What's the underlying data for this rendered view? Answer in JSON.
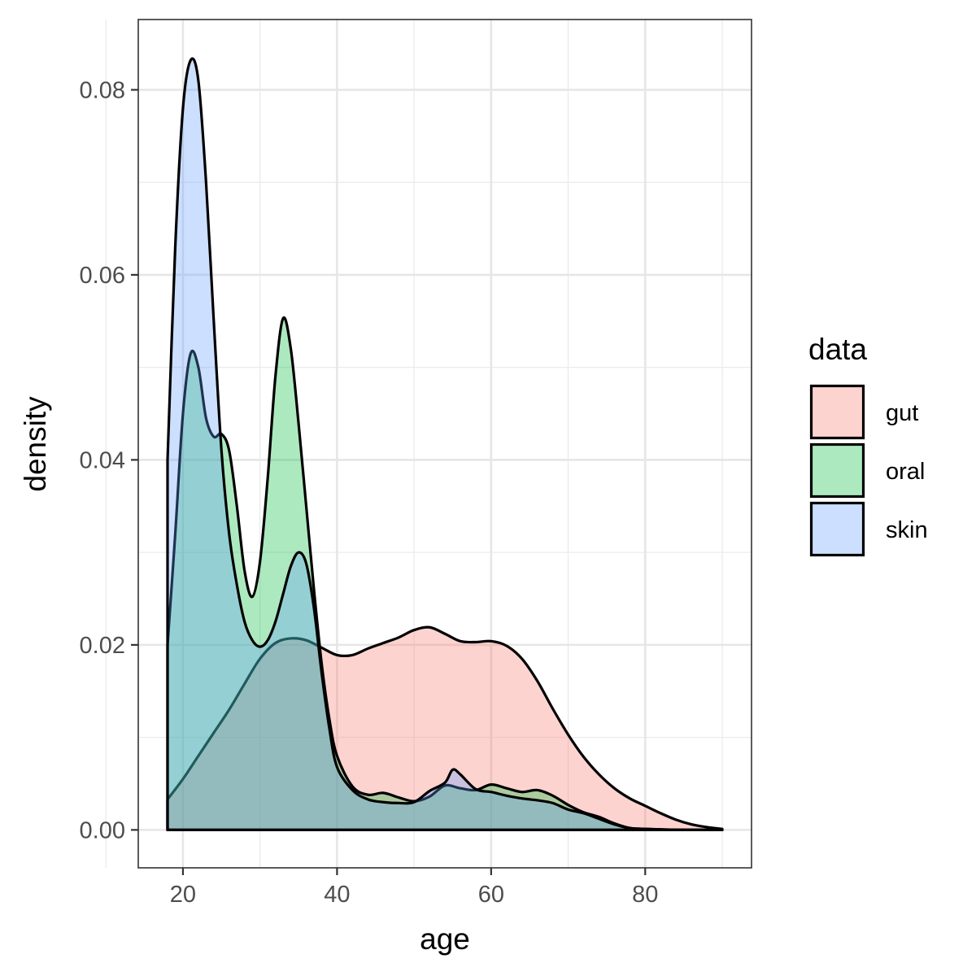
{
  "chart_data": {
    "type": "area",
    "subtype": "density",
    "xlabel": "age",
    "ylabel": "density",
    "xlim": [
      14.2,
      93.8
    ],
    "ylim": [
      -0.0041,
      0.0876
    ],
    "x_ticks": [
      20,
      40,
      60,
      80
    ],
    "x_tick_labels": [
      "20",
      "40",
      "60",
      "80"
    ],
    "y_ticks": [
      0,
      0.02,
      0.04,
      0.06,
      0.08
    ],
    "y_tick_labels": [
      "0.00",
      "0.02",
      "0.04",
      "0.06",
      "0.08"
    ],
    "grid": true,
    "legend": {
      "title": "data",
      "position": "right"
    },
    "series": [
      {
        "name": "gut",
        "fill": "#F8766D",
        "points": [
          [
            18,
            0.0033
          ],
          [
            20,
            0.0055
          ],
          [
            22,
            0.008
          ],
          [
            24,
            0.0105
          ],
          [
            26,
            0.013
          ],
          [
            28,
            0.0158
          ],
          [
            30,
            0.0185
          ],
          [
            32,
            0.0202
          ],
          [
            34,
            0.0207
          ],
          [
            36,
            0.0205
          ],
          [
            38,
            0.0197
          ],
          [
            40,
            0.0189
          ],
          [
            42,
            0.0189
          ],
          [
            44,
            0.0196
          ],
          [
            46,
            0.0202
          ],
          [
            48,
            0.0208
          ],
          [
            50,
            0.0216
          ],
          [
            52,
            0.0219
          ],
          [
            54,
            0.0212
          ],
          [
            56,
            0.0204
          ],
          [
            58,
            0.0203
          ],
          [
            60,
            0.0204
          ],
          [
            62,
            0.0199
          ],
          [
            64,
            0.0185
          ],
          [
            66,
            0.0161
          ],
          [
            68,
            0.0131
          ],
          [
            70,
            0.0103
          ],
          [
            72,
            0.0079
          ],
          [
            74,
            0.006
          ],
          [
            76,
            0.0045
          ],
          [
            78,
            0.0034
          ],
          [
            80,
            0.0026
          ],
          [
            82,
            0.0018
          ],
          [
            84,
            0.0011
          ],
          [
            86,
            0.0006
          ],
          [
            88,
            0.0003
          ],
          [
            90,
            0.0001
          ]
        ]
      },
      {
        "name": "oral",
        "fill": "#00BA38",
        "points": [
          [
            18,
            0.02
          ],
          [
            19,
            0.032
          ],
          [
            20,
            0.045
          ],
          [
            21,
            0.0515
          ],
          [
            22,
            0.05
          ],
          [
            23,
            0.0445
          ],
          [
            24,
            0.0425
          ],
          [
            25,
            0.0428
          ],
          [
            26,
            0.041
          ],
          [
            27,
            0.035
          ],
          [
            28,
            0.028
          ],
          [
            29,
            0.0252
          ],
          [
            30,
            0.029
          ],
          [
            31,
            0.038
          ],
          [
            32,
            0.049
          ],
          [
            33,
            0.0553
          ],
          [
            34,
            0.052
          ],
          [
            35,
            0.044
          ],
          [
            36,
            0.035
          ],
          [
            37,
            0.026
          ],
          [
            38,
            0.018
          ],
          [
            39,
            0.012
          ],
          [
            40,
            0.008
          ],
          [
            42,
            0.0047
          ],
          [
            44,
            0.0038
          ],
          [
            46,
            0.004
          ],
          [
            48,
            0.0035
          ],
          [
            50,
            0.0031
          ],
          [
            52,
            0.0036
          ],
          [
            54,
            0.0048
          ],
          [
            56,
            0.0045
          ],
          [
            58,
            0.0043
          ],
          [
            60,
            0.0049
          ],
          [
            62,
            0.0045
          ],
          [
            64,
            0.0041
          ],
          [
            66,
            0.0043
          ],
          [
            68,
            0.0037
          ],
          [
            70,
            0.0027
          ],
          [
            72,
            0.0019
          ],
          [
            74,
            0.0014
          ],
          [
            76,
            0.0007
          ],
          [
            78,
            0.0002
          ],
          [
            80,
            0.0001
          ],
          [
            85,
            0
          ],
          [
            90,
            0
          ]
        ]
      },
      {
        "name": "skin",
        "fill": "#619CFF",
        "points": [
          [
            18,
            0.04
          ],
          [
            19,
            0.063
          ],
          [
            20,
            0.078
          ],
          [
            21,
            0.0832
          ],
          [
            22,
            0.081
          ],
          [
            23,
            0.07
          ],
          [
            24,
            0.055
          ],
          [
            25,
            0.041
          ],
          [
            26,
            0.032
          ],
          [
            27,
            0.0265
          ],
          [
            28,
            0.0225
          ],
          [
            29,
            0.0205
          ],
          [
            30,
            0.0198
          ],
          [
            31,
            0.0205
          ],
          [
            32,
            0.0225
          ],
          [
            33,
            0.0255
          ],
          [
            34,
            0.0285
          ],
          [
            35,
            0.03
          ],
          [
            36,
            0.0288
          ],
          [
            37,
            0.024
          ],
          [
            38,
            0.017
          ],
          [
            39,
            0.011
          ],
          [
            40,
            0.0068
          ],
          [
            42,
            0.0043
          ],
          [
            44,
            0.0033
          ],
          [
            46,
            0.003
          ],
          [
            48,
            0.0029
          ],
          [
            50,
            0.003
          ],
          [
            52,
            0.0042
          ],
          [
            54,
            0.0051
          ],
          [
            55,
            0.0065
          ],
          [
            56,
            0.006
          ],
          [
            58,
            0.0044
          ],
          [
            60,
            0.0041
          ],
          [
            62,
            0.0037
          ],
          [
            64,
            0.0034
          ],
          [
            66,
            0.0032
          ],
          [
            68,
            0.0029
          ],
          [
            70,
            0.0022
          ],
          [
            72,
            0.0018
          ],
          [
            74,
            0.0012
          ],
          [
            76,
            0.0006
          ],
          [
            78,
            0.0002
          ],
          [
            80,
            0.0001
          ],
          [
            85,
            0
          ],
          [
            90,
            0
          ]
        ]
      }
    ]
  }
}
